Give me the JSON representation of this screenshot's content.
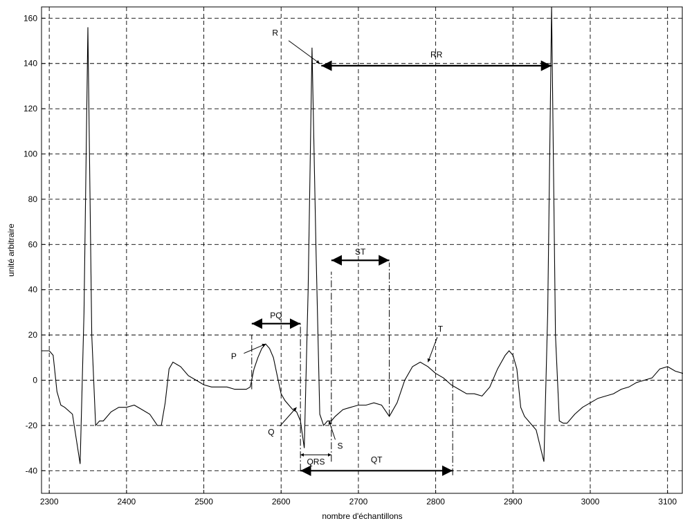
{
  "chart_data": {
    "type": "line",
    "title": "",
    "xlabel": "nombre d'échantillons",
    "ylabel": "unité arbitraire",
    "xlim": [
      2290,
      3120
    ],
    "ylim": [
      -50,
      165
    ],
    "grid": true,
    "xticks": [
      2300,
      2400,
      2500,
      2600,
      2700,
      2800,
      2900,
      3000,
      3100
    ],
    "yticks": [
      -40,
      -20,
      0,
      20,
      40,
      60,
      80,
      100,
      120,
      140,
      160
    ],
    "series": [
      {
        "x": [
          2290,
          2300,
          2305,
          2310,
          2315,
          2320,
          2330,
          2340,
          2345,
          2350,
          2355,
          2360,
          2365,
          2370,
          2380,
          2390,
          2400,
          2410,
          2420,
          2430,
          2440,
          2445,
          2450,
          2455,
          2460,
          2470,
          2480,
          2490,
          2500,
          2510,
          2520,
          2530,
          2540,
          2550,
          2555,
          2560,
          2565,
          2570,
          2575,
          2580,
          2585,
          2590,
          2595,
          2600,
          2605,
          2610,
          2615,
          2620,
          2625,
          2630,
          2635,
          2640,
          2645,
          2650,
          2655,
          2660,
          2665,
          2670,
          2680,
          2690,
          2700,
          2710,
          2720,
          2730,
          2740,
          2750,
          2760,
          2770,
          2780,
          2790,
          2800,
          2810,
          2820,
          2830,
          2840,
          2850,
          2860,
          2870,
          2880,
          2890,
          2895,
          2900,
          2905,
          2910,
          2915,
          2920,
          2930,
          2940,
          2945,
          2950,
          2955,
          2960,
          2965,
          2970,
          2980,
          2990,
          3000,
          3010,
          3020,
          3030,
          3040,
          3050,
          3060,
          3070,
          3080,
          3090,
          3100,
          3110,
          3120
        ],
        "y": [
          13,
          13,
          11,
          -5,
          -11,
          -12,
          -15,
          -37,
          30,
          156,
          20,
          -20,
          -18,
          -18,
          -14,
          -12,
          -12,
          -11,
          -13,
          -15,
          -20,
          -20,
          -10,
          5,
          8,
          6,
          2,
          0,
          -2,
          -3,
          -3,
          -3,
          -4,
          -4,
          -4,
          -3,
          5,
          10,
          14,
          16,
          14,
          10,
          2,
          -6,
          -9,
          -11,
          -13,
          -14,
          -18,
          -30,
          40,
          147,
          60,
          -15,
          -20,
          -18,
          -18,
          -16,
          -13,
          -12,
          -11,
          -11,
          -10,
          -11,
          -16,
          -10,
          0,
          6,
          8,
          6,
          3,
          1,
          -2,
          -4,
          -6,
          -6,
          -7,
          -3,
          5,
          11,
          13,
          11,
          5,
          -12,
          -16,
          -18,
          -22,
          -36,
          30,
          165,
          20,
          -18,
          -19,
          -19,
          -15,
          -12,
          -10,
          -8,
          -7,
          -6,
          -4,
          -3,
          -1,
          0,
          1,
          5,
          6,
          4,
          3
        ]
      }
    ],
    "annotations": [
      {
        "label": "R",
        "x": 2650,
        "y": 140
      },
      {
        "label": "RR",
        "x": [
          2652,
          2950
        ],
        "y": 139
      },
      {
        "label": "P",
        "x": 2580,
        "y": 16
      },
      {
        "label": "PQ",
        "x": [
          2562,
          2625
        ],
        "y": 25
      },
      {
        "label": "Q",
        "x": 2620,
        "y": -12
      },
      {
        "label": "S",
        "x": 2662,
        "y": -18
      },
      {
        "label": "QRS",
        "x": [
          2625,
          2665
        ],
        "y": -33
      },
      {
        "label": "ST",
        "x": [
          2665,
          2740
        ],
        "y": 53
      },
      {
        "label": "T",
        "x": 2790,
        "y": 8
      },
      {
        "label": "QT",
        "x": [
          2625,
          2822
        ],
        "y": -40
      }
    ]
  }
}
